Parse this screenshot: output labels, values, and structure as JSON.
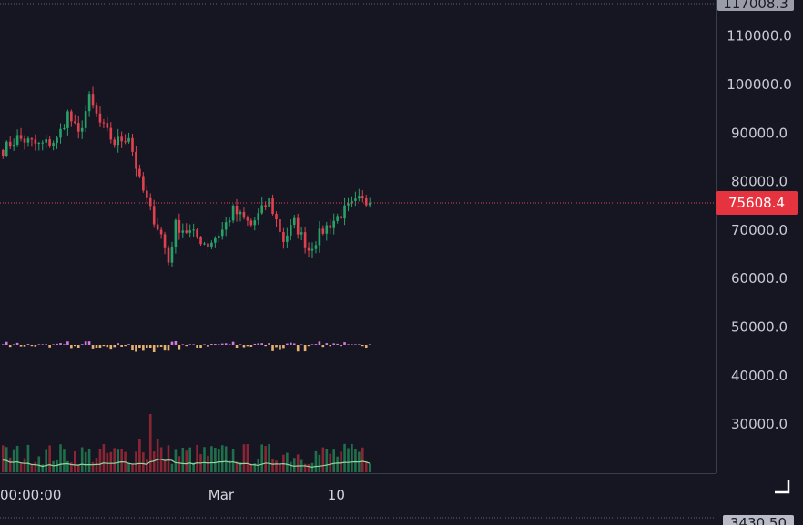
{
  "colors": {
    "background": "#161622",
    "up": "#26a269",
    "down": "#e0414f",
    "last_price_tag": "#e5333f",
    "axis_text": "#c9cbd3",
    "grid_dots": "#6b6f80",
    "volume_ma": "#8fd8a0",
    "oscillator_pos": "#d479e0",
    "oscillator_neg": "#e6b070"
  },
  "top_price_tag": "117008.3",
  "bottom_tag": "3430.50",
  "last_price_label": "75608.4",
  "corner_icon": "resize-corner-icon",
  "chart_data": {
    "type": "candlestick",
    "y_ticks": [
      "110000.0",
      "100000.0",
      "90000.0",
      "80000.0",
      "70000.0",
      "60000.0",
      "50000.0",
      "40000.0",
      "30000.0"
    ],
    "y_tick_values": [
      110000,
      100000,
      90000,
      80000,
      70000,
      60000,
      50000,
      40000,
      30000
    ],
    "ylim": [
      20000,
      117008.3
    ],
    "last_price": 75608.4,
    "x_tick_labels": [
      "00:00:00",
      "Mar",
      "10"
    ],
    "x_tick_candle_index": [
      1,
      61,
      93
    ],
    "candles": {
      "count": 103,
      "start_price": 86500,
      "anchors": [
        [
          0,
          86500
        ],
        [
          4,
          89000
        ],
        [
          10,
          87500
        ],
        [
          15,
          88500
        ],
        [
          18,
          94000
        ],
        [
          21,
          89500
        ],
        [
          24,
          97000
        ],
        [
          27,
          92000
        ],
        [
          31,
          88000
        ],
        [
          35,
          89500
        ],
        [
          38,
          80000
        ],
        [
          41,
          74000
        ],
        [
          44,
          69000
        ],
        [
          46,
          63500
        ],
        [
          48,
          71000
        ],
        [
          52,
          69500
        ],
        [
          57,
          67000
        ],
        [
          61,
          70000
        ],
        [
          64,
          74000
        ],
        [
          69,
          71000
        ],
        [
          74,
          76000
        ],
        [
          78,
          68000
        ],
        [
          81,
          71500
        ],
        [
          85,
          66000
        ],
        [
          89,
          70000
        ],
        [
          95,
          74000
        ],
        [
          99,
          76000
        ],
        [
          102,
          75608.4
        ]
      ]
    }
  }
}
